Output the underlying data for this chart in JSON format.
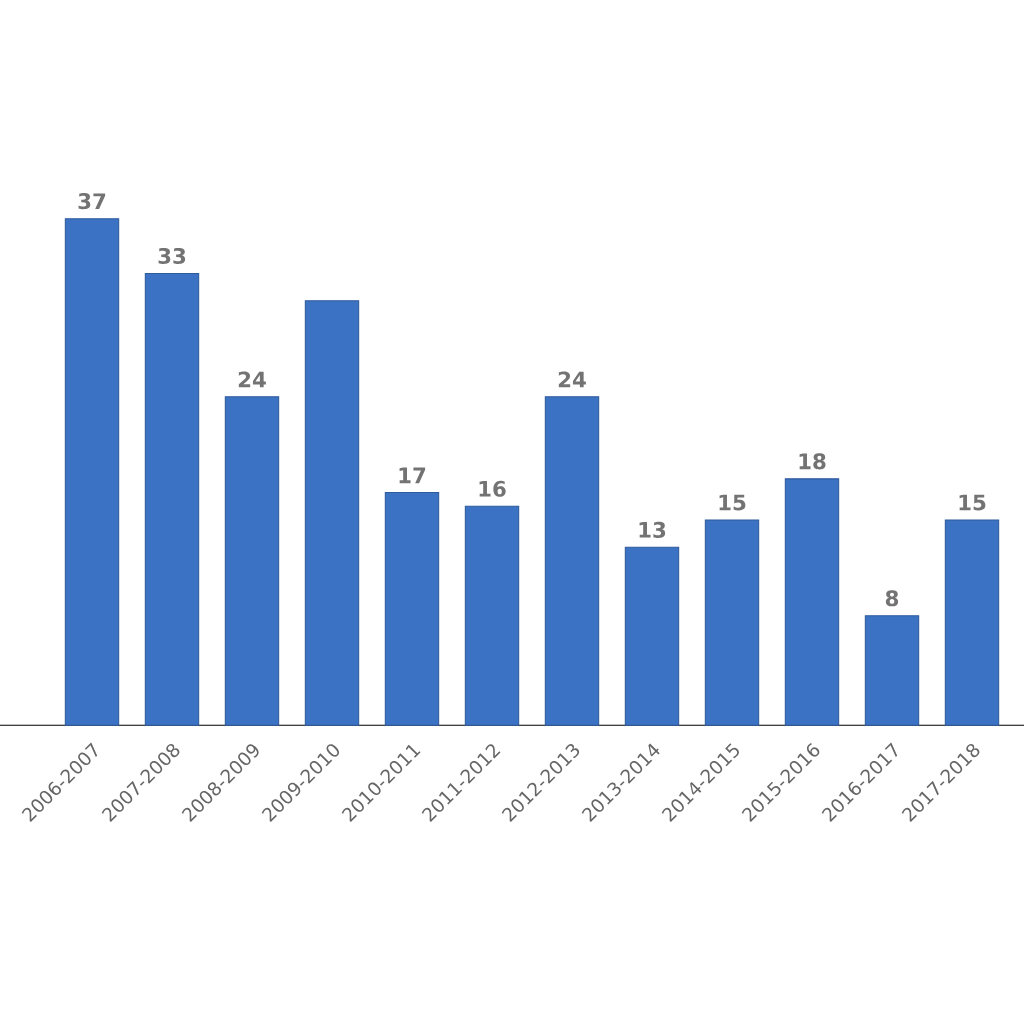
{
  "chart_data": {
    "type": "bar",
    "categories": [
      "2006-2007",
      "2007-2008",
      "2008-2009",
      "2009-2010",
      "2010-2011",
      "2011-2012",
      "2012-2013",
      "2013-2014",
      "2014-2015",
      "2015-2016",
      "2016-2017",
      "2017-2018"
    ],
    "values": [
      37,
      33,
      24,
      31,
      17,
      16,
      24,
      13,
      15,
      18,
      8,
      15
    ],
    "value_labels": [
      "37",
      "33",
      "24",
      null,
      "17",
      "16",
      "24",
      "13",
      "15",
      "18",
      "8",
      "15"
    ],
    "color": "#3b72c3",
    "tick_labels": "x"
  }
}
